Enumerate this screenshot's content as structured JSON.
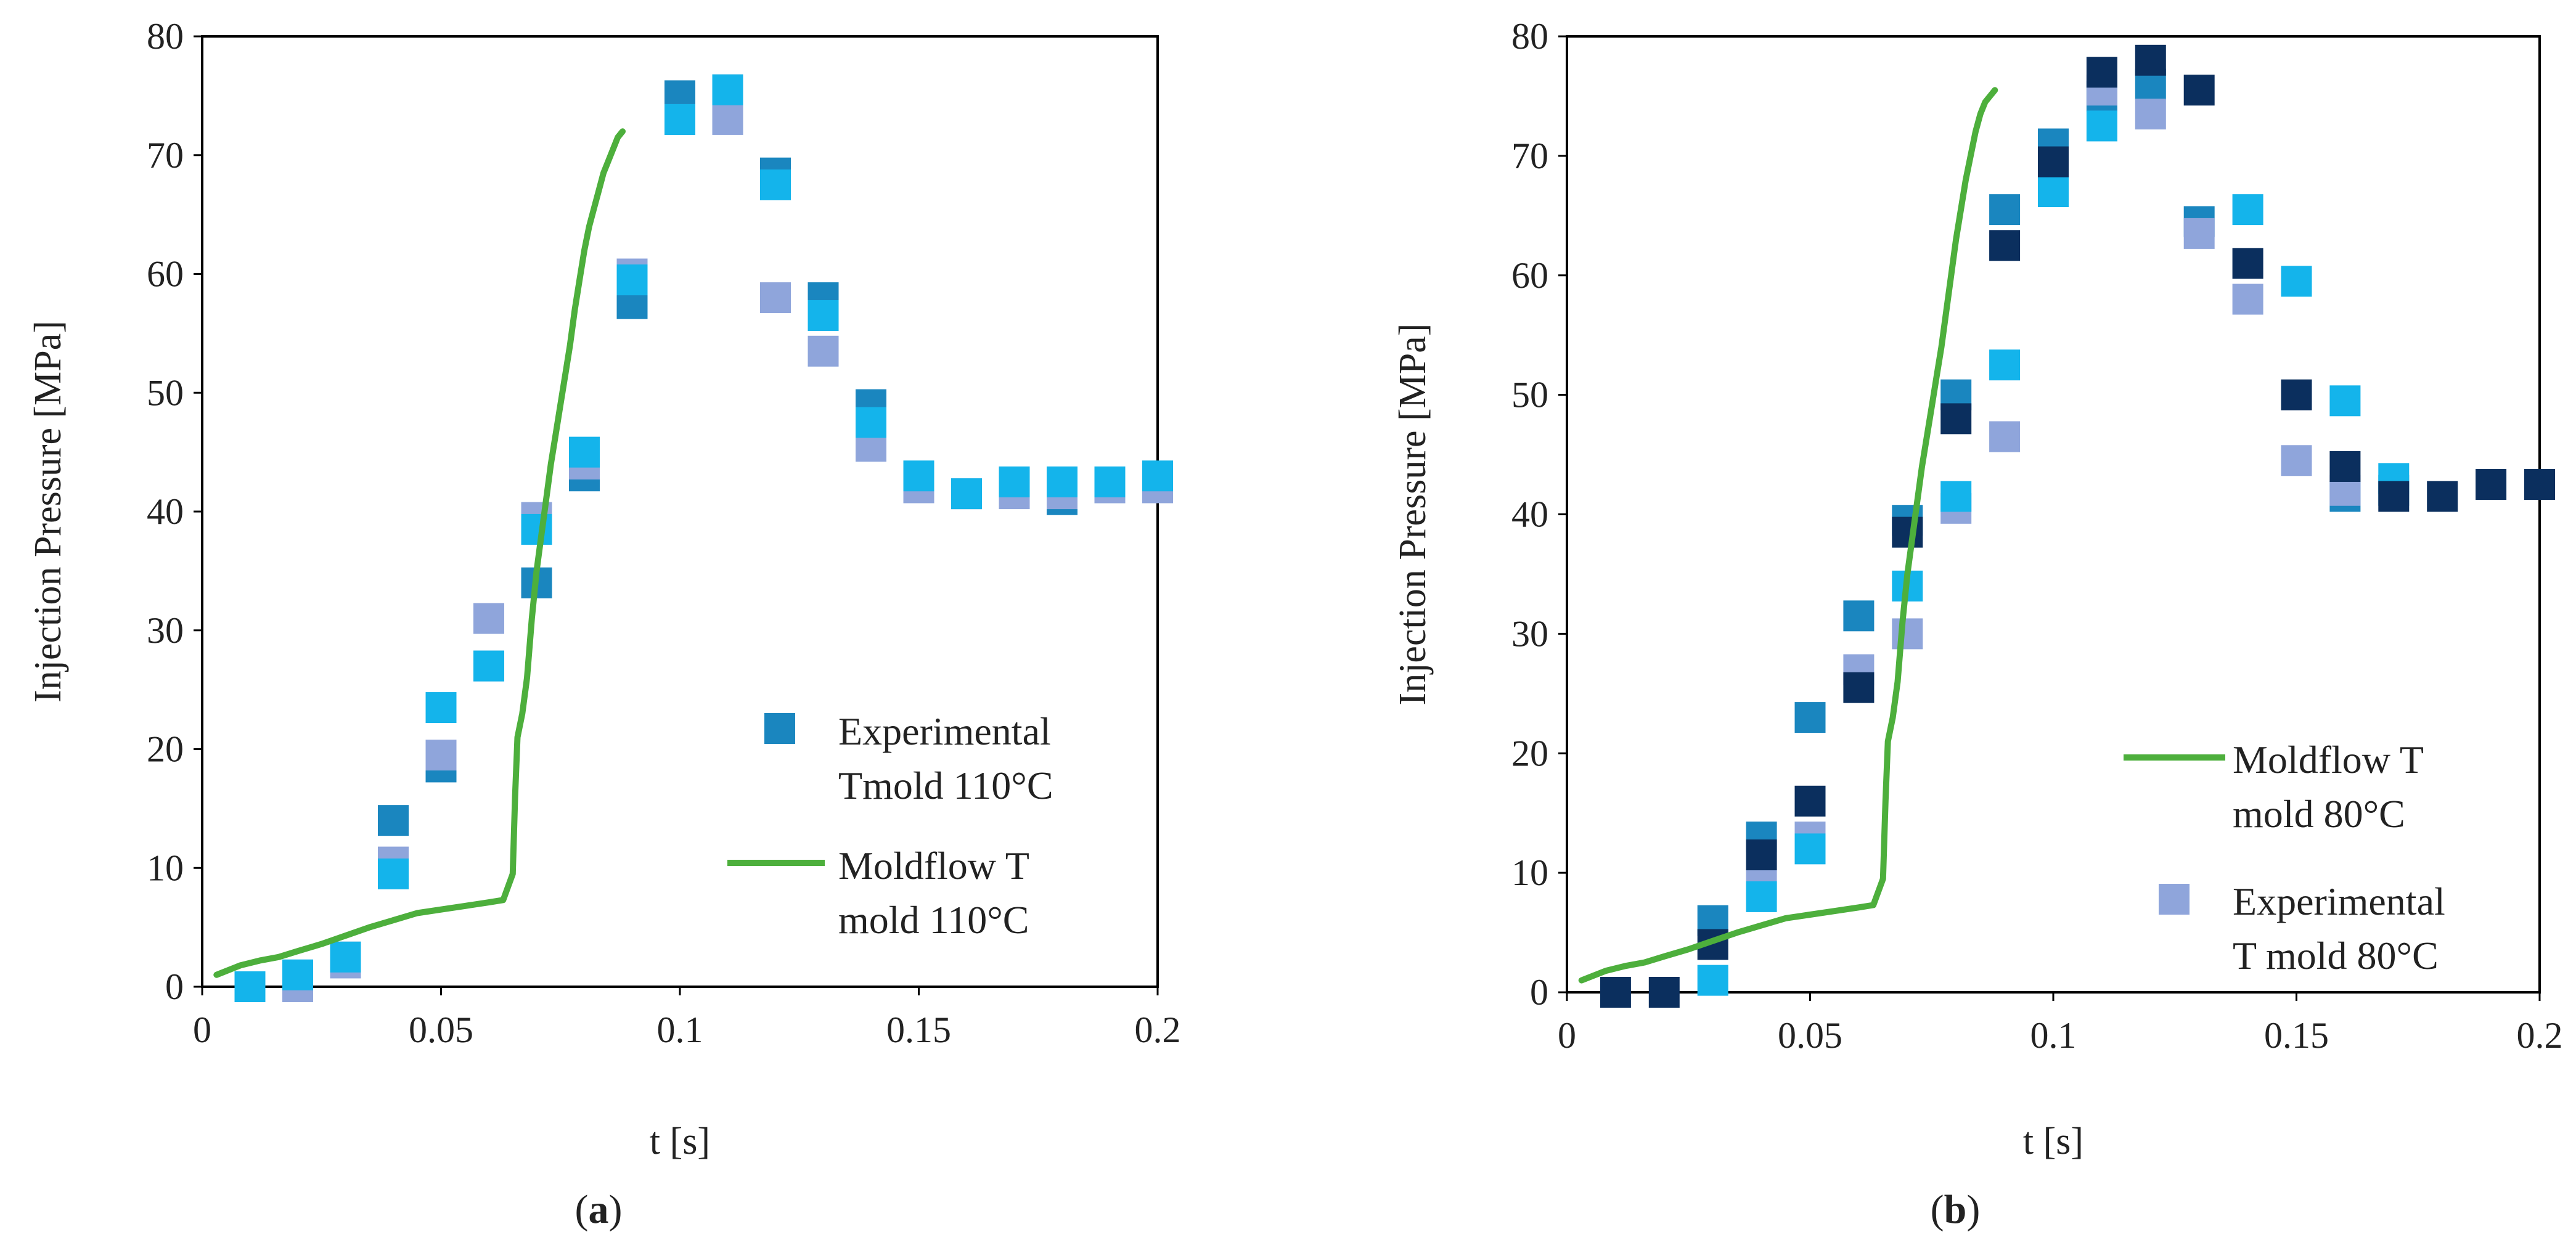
{
  "chart_data": [
    {
      "type": "scatter",
      "panel_label": "a",
      "xlabel": "t [s]",
      "ylabel": "Injection Pressure [MPa]",
      "xlim": [
        0,
        0.2
      ],
      "ylim": [
        0,
        80
      ],
      "x_ticks": [
        "0",
        "0.05",
        "0.1",
        "0.15",
        "0.2"
      ],
      "y_ticks": [
        "0",
        "10",
        "20",
        "30",
        "40",
        "50",
        "60",
        "70",
        "80"
      ],
      "x_tick_values": [
        0,
        0.05,
        0.1,
        0.15,
        0.2
      ],
      "y_tick_values": [
        0,
        10,
        20,
        30,
        40,
        50,
        60,
        70,
        80
      ],
      "legend_position": "right",
      "legend": [
        {
          "label_lines": [
            "Experimental",
            "Tmold 110°C"
          ],
          "marker": "square",
          "color": "#1A86BF"
        },
        {
          "label_lines": [
            "Moldflow T",
            "mold 110°C"
          ],
          "marker": "line",
          "color": "#4DAF3C"
        }
      ],
      "series": [
        {
          "name": "Experimental Tmold 110°C (run 1)",
          "marker": "square",
          "color": "#1A86BF",
          "x": [
            0.01,
            0.02,
            0.03,
            0.04,
            0.05,
            0.06,
            0.07,
            0.08,
            0.09,
            0.1,
            0.11,
            0.12,
            0.13,
            0.14,
            0.15,
            0.16,
            0.17,
            0.18,
            0.19,
            0.2
          ],
          "y": [
            0,
            0.5,
            2.5,
            14,
            18.5,
            27,
            34,
            43,
            57.5,
            75,
            75.5,
            68.5,
            58,
            49,
            42.5,
            41.5,
            42,
            41,
            42,
            42.5
          ]
        },
        {
          "name": "Experimental Tmold 110°C (run 2)",
          "marker": "square",
          "color": "#8FA5DB",
          "x": [
            0.01,
            0.02,
            0.03,
            0.04,
            0.05,
            0.06,
            0.07,
            0.08,
            0.09,
            0.1,
            0.11,
            0.12,
            0.13,
            0.14,
            0.15,
            0.16,
            0.17,
            0.18,
            0.19,
            0.2
          ],
          "y": [
            0,
            0,
            2,
            10.5,
            19.5,
            31,
            39.5,
            44,
            60,
            73,
            73,
            58,
            53.5,
            45.5,
            42,
            41.5,
            41.5,
            41.5,
            42,
            42
          ]
        },
        {
          "name": "Experimental Tmold 110°C (run 3)",
          "marker": "square",
          "color": "#14B4EB",
          "x": [
            0.01,
            0.02,
            0.03,
            0.04,
            0.05,
            0.06,
            0.07,
            0.08,
            0.09,
            0.1,
            0.11,
            0.12,
            0.13,
            0.14,
            0.15,
            0.16,
            0.17,
            0.18,
            0.19,
            0.2
          ],
          "y": [
            0,
            1,
            2.5,
            9.5,
            23.5,
            27,
            38.5,
            45,
            59.5,
            73,
            75.5,
            67.5,
            56.5,
            47.5,
            43,
            41.5,
            42.5,
            42.5,
            42.5,
            43
          ]
        },
        {
          "name": "Moldflow T mold 110°C",
          "marker": "line",
          "color": "#4DAF3C",
          "x": [
            0.003,
            0.008,
            0.012,
            0.016,
            0.02,
            0.025,
            0.03,
            0.035,
            0.04,
            0.045,
            0.05,
            0.055,
            0.06,
            0.063,
            0.065,
            0.0655,
            0.066,
            0.067,
            0.068,
            0.069,
            0.07,
            0.071,
            0.072,
            0.073,
            0.074,
            0.075,
            0.076,
            0.077,
            0.078,
            0.079,
            0.08,
            0.081,
            0.082,
            0.083,
            0.084,
            0.085,
            0.086,
            0.087,
            0.088
          ],
          "y": [
            1,
            1.8,
            2.2,
            2.5,
            3,
            3.6,
            4.3,
            5,
            5.6,
            6.2,
            6.5,
            6.8,
            7.1,
            7.3,
            9.5,
            16,
            21,
            23,
            26,
            31,
            35,
            38,
            41,
            44,
            46.5,
            49,
            51.5,
            54,
            57,
            59.5,
            62,
            64,
            65.5,
            67,
            68.5,
            69.5,
            70.5,
            71.5,
            72
          ]
        }
      ]
    },
    {
      "type": "scatter",
      "panel_label": "b",
      "xlabel": "t [s]",
      "ylabel": "Injection Pressure [MPa]",
      "xlim": [
        0,
        0.2
      ],
      "ylim": [
        0,
        80
      ],
      "x_ticks": [
        "0",
        "0.05",
        "0.1",
        "0.15",
        "0.2"
      ],
      "y_ticks": [
        "0",
        "10",
        "20",
        "30",
        "40",
        "50",
        "60",
        "70",
        "80"
      ],
      "x_tick_values": [
        0,
        0.05,
        0.1,
        0.15,
        0.2
      ],
      "y_tick_values": [
        0,
        10,
        20,
        30,
        40,
        50,
        60,
        70,
        80
      ],
      "legend_position": "right",
      "legend": [
        {
          "label_lines": [
            "Moldflow T",
            "mold 80°C"
          ],
          "marker": "line",
          "color": "#4DAF3C"
        },
        {
          "label_lines": [
            "Experimental",
            "T mold 80°C"
          ],
          "marker": "square",
          "color": "#8FA5DB"
        }
      ],
      "series": [
        {
          "name": "Experimental T mold 80°C (run 1)",
          "marker": "square",
          "color": "#1A86BF",
          "x": [
            0.03,
            0.04,
            0.05,
            0.06,
            0.07,
            0.08,
            0.09,
            0.1,
            0.11,
            0.12,
            0.13,
            0.16,
            0.17
          ],
          "y": [
            6,
            13,
            23,
            31.5,
            39.5,
            50,
            65.5,
            71,
            75,
            76,
            64.5,
            41.5,
            42
          ]
        },
        {
          "name": "Experimental T mold 80°C (run 2)",
          "marker": "square",
          "color": "#8FA5DB",
          "x": [
            0.04,
            0.05,
            0.06,
            0.07,
            0.08,
            0.09,
            0.11,
            0.12,
            0.13,
            0.14,
            0.15,
            0.16
          ],
          "y": [
            9,
            13,
            27,
            30,
            40.5,
            46.5,
            75.5,
            73.5,
            63.5,
            58,
            44.5,
            42
          ]
        },
        {
          "name": "Experimental T mold 80°C (run 3)",
          "marker": "square",
          "color": "#14B4EB",
          "x": [
            0.03,
            0.04,
            0.05,
            0.07,
            0.08,
            0.09,
            0.1,
            0.11,
            0.14,
            0.15,
            0.16,
            0.17
          ],
          "y": [
            1,
            8,
            12,
            34,
            41.5,
            52.5,
            67,
            72.5,
            65.5,
            59.5,
            49.5,
            43
          ]
        },
        {
          "name": "Experimental T mold 80°C (run 4)",
          "marker": "square",
          "color": "#0B2F5E",
          "x": [
            0.01,
            0.02,
            0.03,
            0.04,
            0.05,
            0.06,
            0.07,
            0.08,
            0.09,
            0.1,
            0.11,
            0.12,
            0.13,
            0.14,
            0.15,
            0.16,
            0.17,
            0.18,
            0.19,
            0.2
          ],
          "y": [
            0,
            0,
            4,
            11.5,
            16,
            25.5,
            38.5,
            48,
            62.5,
            69.5,
            77,
            78,
            75.5,
            61,
            50,
            44,
            41.5,
            41.5,
            42.5,
            42.5
          ]
        },
        {
          "name": "Moldflow T mold 80°C",
          "marker": "line",
          "color": "#4DAF3C",
          "x": [
            0.003,
            0.008,
            0.012,
            0.016,
            0.02,
            0.025,
            0.03,
            0.035,
            0.04,
            0.045,
            0.05,
            0.055,
            0.06,
            0.063,
            0.065,
            0.0655,
            0.066,
            0.067,
            0.068,
            0.069,
            0.07,
            0.071,
            0.072,
            0.073,
            0.074,
            0.075,
            0.076,
            0.077,
            0.078,
            0.079,
            0.08,
            0.081,
            0.082,
            0.083,
            0.084,
            0.085,
            0.086,
            0.087,
            0.088
          ],
          "y": [
            1,
            1.8,
            2.2,
            2.5,
            3,
            3.6,
            4.3,
            5,
            5.6,
            6.2,
            6.5,
            6.8,
            7.1,
            7.3,
            9.5,
            16,
            21,
            23,
            26,
            31,
            35,
            38,
            41,
            44,
            46.5,
            49,
            51.5,
            54,
            57,
            60,
            63,
            65.5,
            68,
            70,
            72,
            73.5,
            74.5,
            75,
            75.5
          ]
        }
      ]
    }
  ]
}
